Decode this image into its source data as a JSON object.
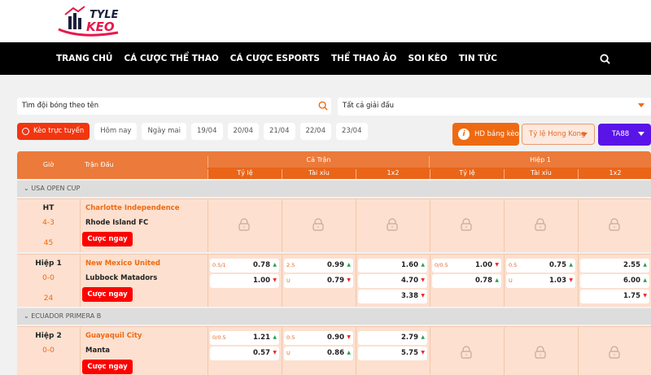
{
  "brand": {
    "logo_text": "TYLE KEO"
  },
  "nav": [
    "TRANG CHỦ",
    "CÁ CƯỢC THỂ THAO",
    "CÁ CƯỢC ESPORTS",
    "THỂ THAO ẢO",
    "SOI KÈO",
    "TIN TỨC"
  ],
  "search": {
    "placeholder": "Tìm đội bóng theo tên"
  },
  "league_select": {
    "value": "Tất cả giải đấu"
  },
  "dates": [
    "Kèo trực tuyến",
    "Hôm nay",
    "Ngày mai",
    "19/04",
    "20/04",
    "21/04",
    "22/04",
    "23/04"
  ],
  "buttons": {
    "guide": "HD bảng kèo",
    "odds_type": "Tỷ lệ Hong Kong",
    "bookmaker": "TA88"
  },
  "colors": {
    "accent": "#ee6a12",
    "nav_bg": "#000000",
    "bet": "#ff0000",
    "bookmaker": "#5a14e8"
  },
  "table": {
    "headers": {
      "time": "Giờ",
      "match": "Trận Đấu",
      "full": "Cả Trận",
      "half": "Hiệp 1",
      "sub": [
        "Tỷ lệ",
        "Tài xỉu",
        "1x2",
        "Tỷ lệ",
        "Tài xỉu",
        "1x2"
      ]
    },
    "bet_label": "Cược ngay",
    "leagues": [
      {
        "name": "USA OPEN CUP",
        "matches": [
          {
            "status": "HT",
            "score": "4-3",
            "minute": "45",
            "home": "Charlotte Independence",
            "away": "Rhode Island FC",
            "locked": [
              true,
              true,
              true,
              true,
              true,
              true
            ],
            "odds": []
          }
        ]
      },
      {
        "name": "",
        "matches": [
          {
            "status": "Hiệp 1",
            "score": "0-0",
            "minute": "24",
            "home": "New Mexico United",
            "away": "Lubbock Matadors",
            "locked": [
              false,
              false,
              false,
              false,
              false,
              false
            ],
            "odds": [
              [
                {
                  "h": "0.5/1",
                  "v": "0.78",
                  "d": "up"
                },
                {
                  "h": "",
                  "v": "1.00",
                  "d": "dn"
                }
              ],
              [
                {
                  "h": "2.5",
                  "v": "0.99",
                  "d": "up"
                },
                {
                  "h": "U",
                  "v": "0.79",
                  "d": "dn"
                }
              ],
              [
                {
                  "h": "",
                  "v": "1.60",
                  "d": "up"
                },
                {
                  "h": "",
                  "v": "4.70",
                  "d": "dn"
                },
                {
                  "h": "",
                  "v": "3.38",
                  "d": "dn"
                }
              ],
              [
                {
                  "h": "0/0.5",
                  "v": "1.00",
                  "d": "dn"
                },
                {
                  "h": "",
                  "v": "0.78",
                  "d": "up"
                }
              ],
              [
                {
                  "h": "0.5",
                  "v": "0.75",
                  "d": "up"
                },
                {
                  "h": "U",
                  "v": "1.03",
                  "d": "dn"
                }
              ],
              [
                {
                  "h": "",
                  "v": "2.55",
                  "d": "up"
                },
                {
                  "h": "",
                  "v": "6.00",
                  "d": "up"
                },
                {
                  "h": "",
                  "v": "1.75",
                  "d": "dn"
                }
              ]
            ]
          }
        ]
      },
      {
        "name": "ECUADOR PRIMERA B",
        "matches": [
          {
            "status": "Hiệp 2",
            "score": "0-0",
            "minute": "",
            "home": "Guayaquil City",
            "away": "Manta",
            "locked": [
              false,
              false,
              false,
              true,
              true,
              true
            ],
            "odds": [
              [
                {
                  "h": "0/0.5",
                  "v": "1.21",
                  "d": "up"
                },
                {
                  "h": "",
                  "v": "0.57",
                  "d": "dn"
                }
              ],
              [
                {
                  "h": "0.5",
                  "v": "0.90",
                  "d": "dn"
                },
                {
                  "h": "U",
                  "v": "0.86",
                  "d": "up"
                }
              ],
              [
                {
                  "h": "",
                  "v": "2.79",
                  "d": "up"
                },
                {
                  "h": "",
                  "v": "5.75",
                  "d": "dn"
                }
              ],
              [],
              [],
              []
            ]
          }
        ]
      }
    ]
  }
}
